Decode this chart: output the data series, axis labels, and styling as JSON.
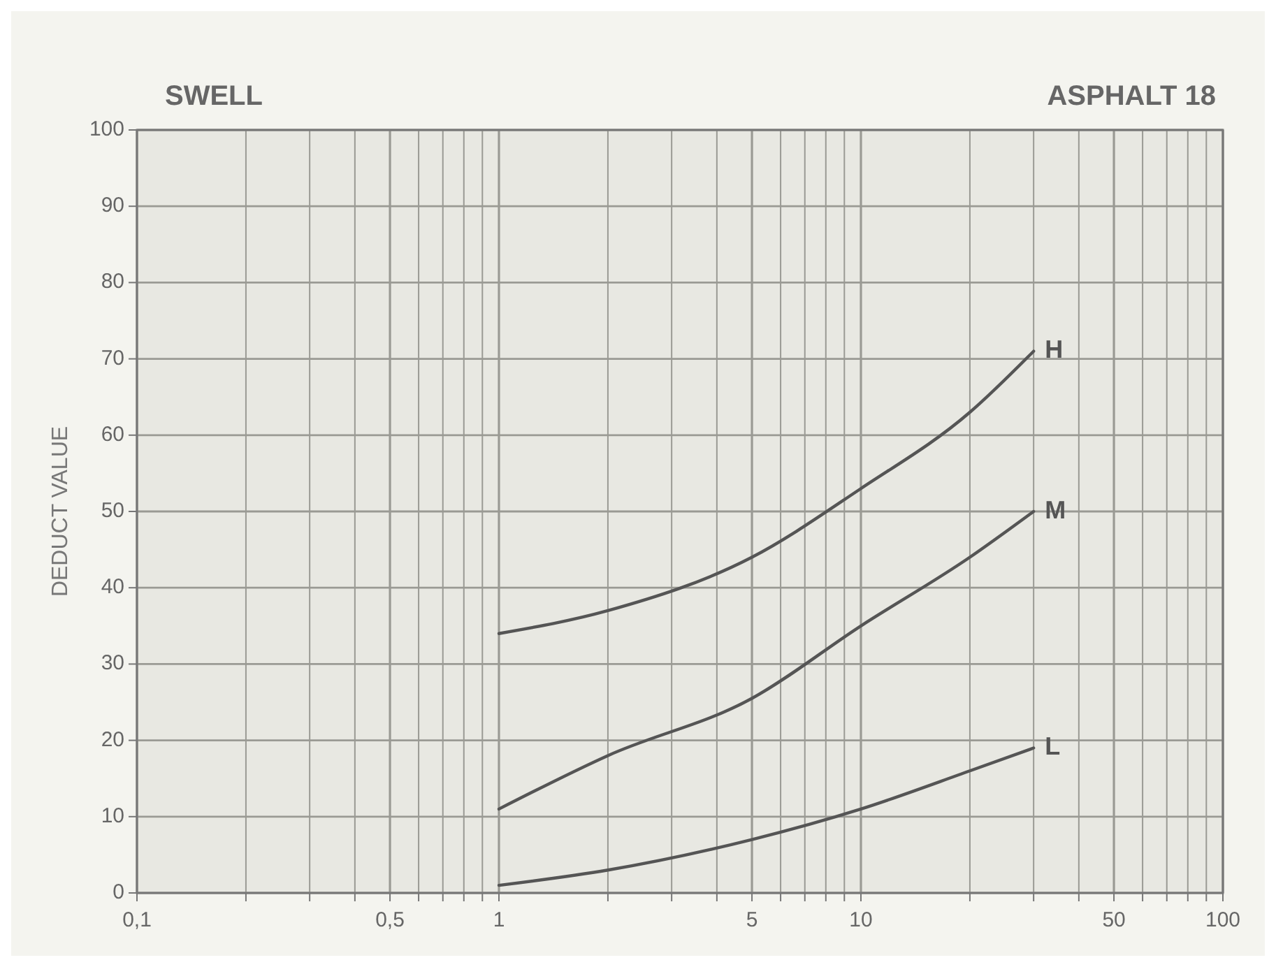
{
  "chart_data": {
    "type": "line",
    "title": "SWELL",
    "subtitle": "ASPHALT 18",
    "ylabel": "DEDUCT VALUE",
    "log": "x",
    "xlim": [
      0.1,
      100
    ],
    "ylim": [
      0,
      100
    ],
    "xticks": [
      {
        "value": 0.1,
        "label": "0,1"
      },
      {
        "value": 0.2,
        "label": null
      },
      {
        "value": 0.3,
        "label": null
      },
      {
        "value": 0.4,
        "label": null
      },
      {
        "value": 0.5,
        "label": "0,5"
      },
      {
        "value": 0.6,
        "label": null
      },
      {
        "value": 0.7,
        "label": null
      },
      {
        "value": 0.8,
        "label": null
      },
      {
        "value": 0.9,
        "label": null
      },
      1,
      {
        "value": 2,
        "label": null
      },
      {
        "value": 3,
        "label": null
      },
      {
        "value": 4,
        "label": null
      },
      5,
      {
        "value": 6,
        "label": null
      },
      {
        "value": 7,
        "label": null
      },
      {
        "value": 8,
        "label": null
      },
      {
        "value": 9,
        "label": null
      },
      10,
      {
        "value": 20,
        "label": null
      },
      {
        "value": 30,
        "label": null
      },
      {
        "value": 40,
        "label": null
      },
      50,
      {
        "value": 60,
        "label": null
      },
      {
        "value": 70,
        "label": null
      },
      {
        "value": 80,
        "label": null
      },
      {
        "value": 90,
        "label": null
      },
      100
    ],
    "yticks": [
      0,
      10,
      20,
      30,
      40,
      50,
      60,
      70,
      80,
      90,
      100
    ],
    "grid": true,
    "marker": "none",
    "line_style": "solid",
    "series": [
      {
        "name": "H",
        "color": "#555555",
        "x": [
          1,
          2,
          5,
          10,
          20,
          30
        ],
        "values": [
          34,
          37,
          44,
          53,
          63,
          71
        ]
      },
      {
        "name": "M",
        "color": "#555555",
        "x": [
          1,
          2,
          5,
          10,
          20,
          30
        ],
        "values": [
          11,
          18,
          25.5,
          35,
          44,
          50
        ]
      },
      {
        "name": "L",
        "color": "#555555",
        "x": [
          1,
          2,
          5,
          10,
          20,
          30
        ],
        "values": [
          1,
          3,
          7,
          11,
          16,
          19
        ]
      }
    ]
  }
}
